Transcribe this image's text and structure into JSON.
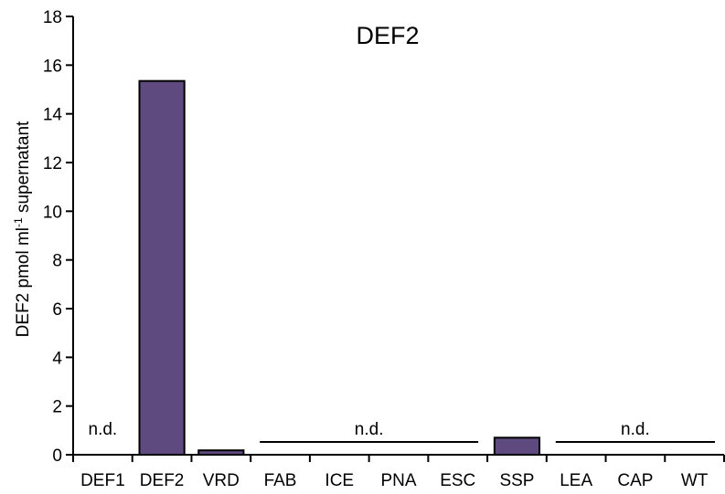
{
  "chart_data": {
    "type": "bar",
    "title": "DEF2",
    "xlabel": "",
    "ylabel_main": "DEF2 pmol ml",
    "ylabel_sup": "-1",
    "ylabel_tail": " supernatant",
    "ylim": [
      0,
      18
    ],
    "yticks": [
      "0",
      "2",
      "4",
      "6",
      "8",
      "10",
      "12",
      "14",
      "16",
      "18"
    ],
    "categories": [
      "DEF1",
      "DEF2",
      "VRD",
      "FAB",
      "ICE",
      "PNA",
      "ESC",
      "SSP",
      "LEA",
      "CAP",
      "WT"
    ],
    "values": [
      0,
      15.35,
      0.18,
      0,
      0,
      0,
      0,
      0.7,
      0,
      0,
      0
    ],
    "bar_color": "#5e4a7e",
    "grid": false,
    "annotations": [
      {
        "text": "n.d.",
        "from": "DEF1",
        "to": "DEF1",
        "line": false
      },
      {
        "text": "n.d.",
        "from": "FAB",
        "to": "ESC",
        "line": true
      },
      {
        "text": "n.d.",
        "from": "LEA",
        "to": "WT",
        "line": true
      }
    ]
  }
}
